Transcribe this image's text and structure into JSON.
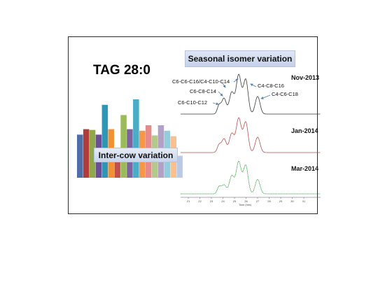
{
  "title": "TAG 28:0",
  "seasonal_label": "Seasonal isomer variation",
  "intercow_label": "Inter-cow variation",
  "peak_labels": [
    "C6-C6-C16/C4-C10-C14",
    "C6-C8-C14",
    "C6-C10-C12",
    "C4-C8-C16",
    "C4-C6-C18"
  ],
  "chromatograms": [
    {
      "date": "Nov-2013",
      "color": "#3a3a3a"
    },
    {
      "date": "Jan-2014",
      "color": "#b5524f"
    },
    {
      "date": "Mar-2014",
      "color": "#2f9a3c"
    }
  ],
  "x_axis": {
    "ticks": [
      "21",
      "22",
      "23",
      "24",
      "25",
      "26",
      "27",
      "28",
      "29",
      "30",
      "31"
    ],
    "label": "Time (min)"
  },
  "bars": [
    {
      "color": "#4f6ea8",
      "value": 0.55
    },
    {
      "color": "#b23c3a",
      "value": 0.62
    },
    {
      "color": "#8ea84a",
      "value": 0.61
    },
    {
      "color": "#6b4f96",
      "value": 0.55
    },
    {
      "color": "#2f96b4",
      "value": 0.93
    },
    {
      "color": "#f09133",
      "value": 0.62
    },
    {
      "color": "#c0504d",
      "value": 0.36
    },
    {
      "color": "#9bbb59",
      "value": 0.8
    },
    {
      "color": "#7f63a1",
      "value": 0.62
    },
    {
      "color": "#4bacc6",
      "value": 1.0
    },
    {
      "color": "#f79646",
      "value": 0.6
    },
    {
      "color": "#e68a8a",
      "value": 0.67
    },
    {
      "color": "#b3c98a",
      "value": 0.54
    },
    {
      "color": "#b2a1c7",
      "value": 0.67
    },
    {
      "color": "#93cddd",
      "value": 0.6
    },
    {
      "color": "#fac090",
      "value": 0.53
    },
    {
      "color": "#b9c9e6",
      "value": 0.28
    }
  ]
}
